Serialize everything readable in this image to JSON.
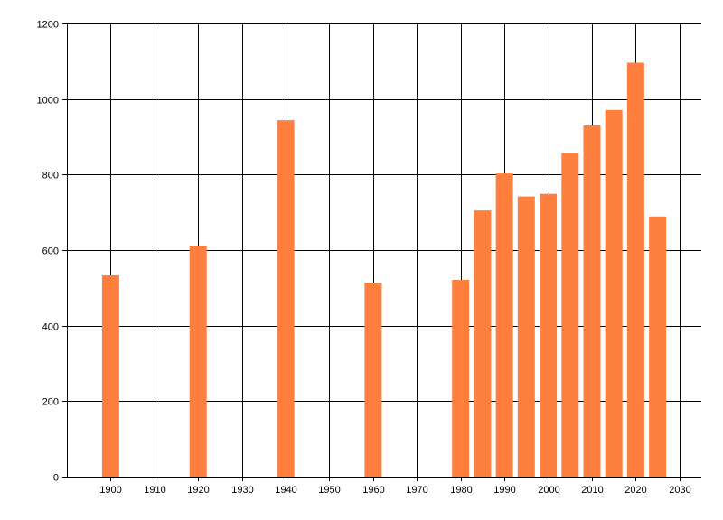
{
  "chart_data": {
    "type": "bar",
    "title": "",
    "xlabel": "",
    "ylabel": "",
    "x": [
      1900,
      1920,
      1940,
      1960,
      1980,
      1985,
      1990,
      1995,
      2000,
      2005,
      2010,
      2015,
      2020,
      2025
    ],
    "values": [
      533,
      612,
      944,
      514,
      521,
      705,
      803,
      742,
      749,
      857,
      930,
      971,
      1096,
      689
    ],
    "xlim": [
      1890,
      2035
    ],
    "ylim": [
      0,
      1200
    ],
    "xticks": [
      1900,
      1910,
      1920,
      1930,
      1940,
      1950,
      1960,
      1970,
      1980,
      1990,
      2000,
      2010,
      2020,
      2030
    ],
    "yticks": [
      0,
      200,
      400,
      600,
      800,
      1000,
      1200
    ],
    "grid": true,
    "bar_color": "#ff7f3f",
    "grid_color": "#000000"
  }
}
